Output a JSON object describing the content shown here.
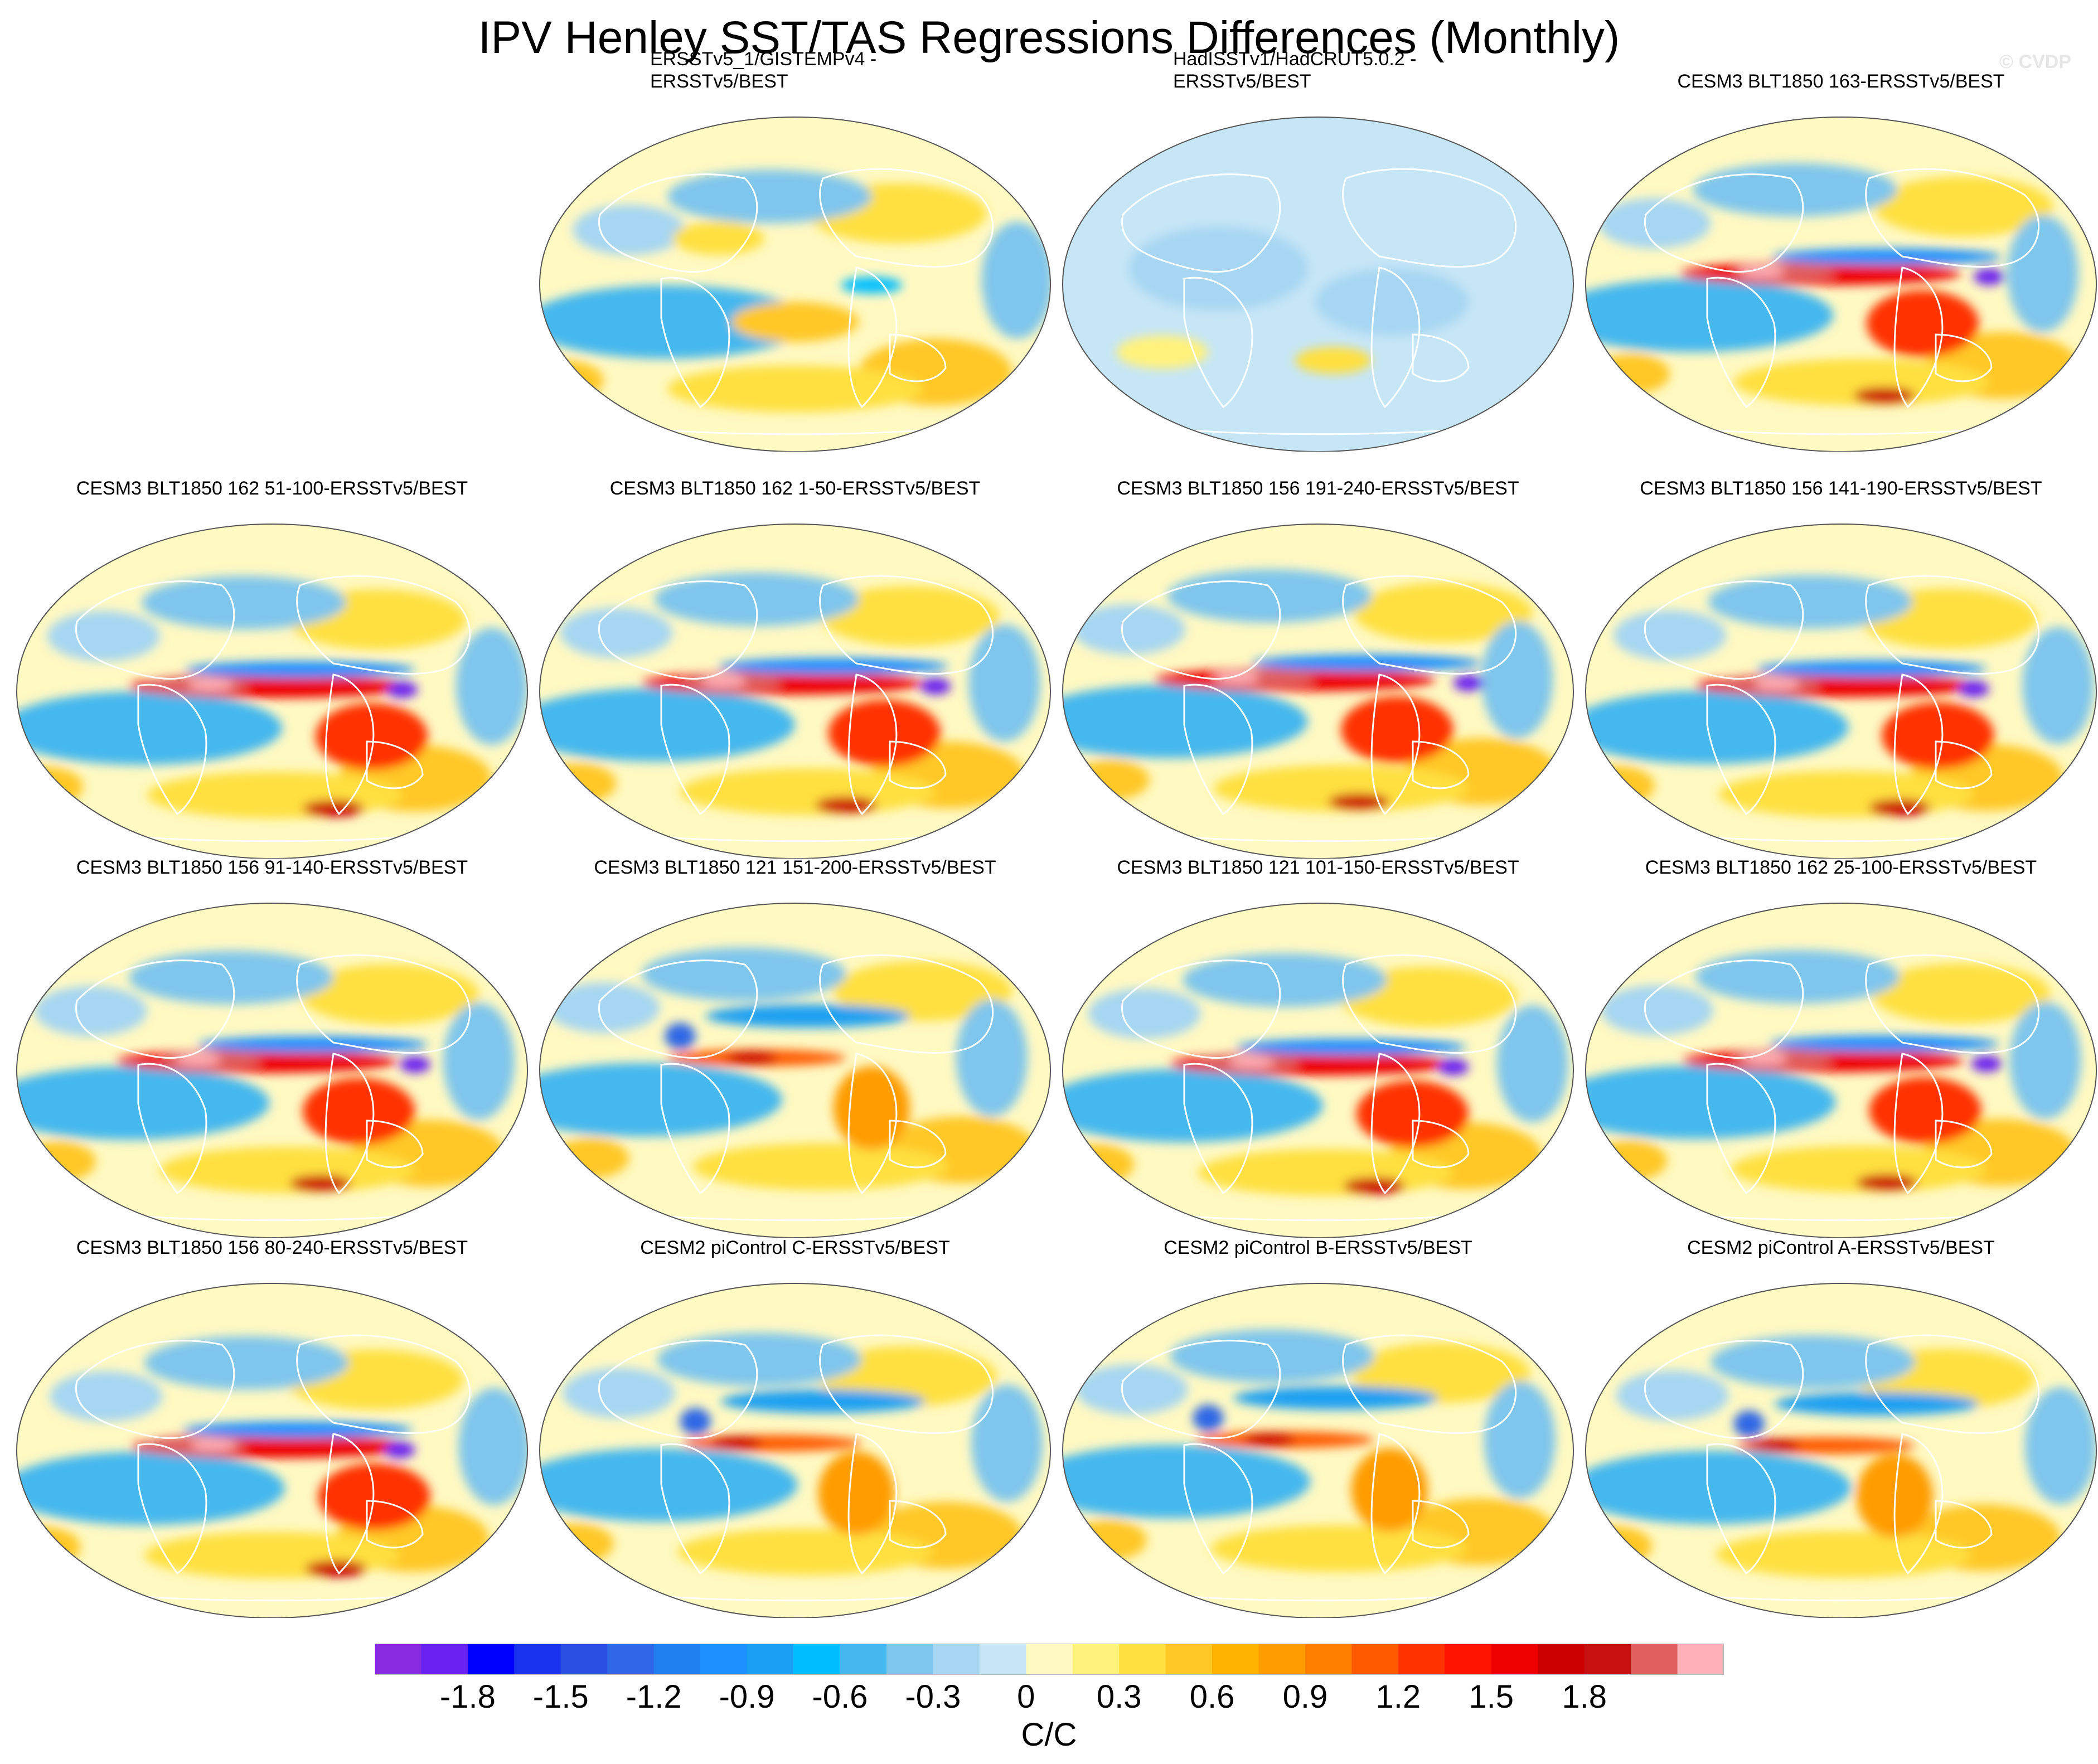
{
  "title": "IPV Henley SST/TAS Regressions Differences (Monthly)",
  "copyright": "© CVDP",
  "units": "C/C",
  "colorbar": {
    "colors": [
      "#8a2be2",
      "#6a22f0",
      "#0000ff",
      "#1a33ee",
      "#2b4fe0",
      "#2f67e6",
      "#1f7fee",
      "#1e90ff",
      "#1aa0f2",
      "#00bfff",
      "#44b8ee",
      "#7fc6ec",
      "#a6d6f2",
      "#c6e6f6",
      "#fff9c2",
      "#fff27a",
      "#ffe040",
      "#ffc827",
      "#ffb300",
      "#ff9c00",
      "#ff7f00",
      "#ff5a00",
      "#ff3300",
      "#ff1400",
      "#ee0000",
      "#cc0000",
      "#c81010",
      "#e06060",
      "#ffb0b8"
    ],
    "ticks": [
      "-1.8",
      "-1.5",
      "-1.2",
      "-0.9",
      "-0.6",
      "-0.3",
      "0",
      "0.3",
      "0.6",
      "0.9",
      "1.2",
      "1.5",
      "1.8"
    ]
  },
  "panels": [
    {
      "row": 0,
      "col": 1,
      "title_line1": "ERSSTv5_1/GISTEMPv4 -",
      "title_line2": "ERSSTv5/BEST",
      "pattern": "weak"
    },
    {
      "row": 0,
      "col": 2,
      "title_line1": "HadISSTv1/HadCRUT5.0.2 -",
      "title_line2": "ERSSTv5/BEST",
      "pattern": "faint"
    },
    {
      "row": 0,
      "col": 3,
      "title_line1": "CESM3 BLT1850 163-ERSSTv5/BEST",
      "title_line2": "",
      "pattern": "strong"
    },
    {
      "row": 1,
      "col": 0,
      "title_line1": "CESM3 BLT1850 162 51-100-ERSSTv5/BEST",
      "title_line2": "",
      "pattern": "strong"
    },
    {
      "row": 1,
      "col": 1,
      "title_line1": "CESM3 BLT1850 162 1-50-ERSSTv5/BEST",
      "title_line2": "",
      "pattern": "strong"
    },
    {
      "row": 1,
      "col": 2,
      "title_line1": "CESM3 BLT1850 156 191-240-ERSSTv5/BEST",
      "title_line2": "",
      "pattern": "strong"
    },
    {
      "row": 1,
      "col": 3,
      "title_line1": "CESM3 BLT1850 156 141-190-ERSSTv5/BEST",
      "title_line2": "",
      "pattern": "strong"
    },
    {
      "row": 2,
      "col": 0,
      "title_line1": "CESM3 BLT1850 156 91-140-ERSSTv5/BEST",
      "title_line2": "",
      "pattern": "strong"
    },
    {
      "row": 2,
      "col": 1,
      "title_line1": "CESM3 BLT1850 121 151-200-ERSSTv5/BEST",
      "title_line2": "",
      "pattern": "medium"
    },
    {
      "row": 2,
      "col": 2,
      "title_line1": "CESM3 BLT1850 121 101-150-ERSSTv5/BEST",
      "title_line2": "",
      "pattern": "strong"
    },
    {
      "row": 2,
      "col": 3,
      "title_line1": "CESM3 BLT1850 162 25-100-ERSSTv5/BEST",
      "title_line2": "",
      "pattern": "strong"
    },
    {
      "row": 3,
      "col": 0,
      "title_line1": "CESM3 BLT1850 156 80-240-ERSSTv5/BEST",
      "title_line2": "",
      "pattern": "strong"
    },
    {
      "row": 3,
      "col": 1,
      "title_line1": "CESM2 piControl C-ERSSTv5/BEST",
      "title_line2": "",
      "pattern": "medium"
    },
    {
      "row": 3,
      "col": 2,
      "title_line1": "CESM2 piControl B-ERSSTv5/BEST",
      "title_line2": "",
      "pattern": "medium"
    },
    {
      "row": 3,
      "col": 3,
      "title_line1": "CESM2 piControl A-ERSSTv5/BEST",
      "title_line2": "",
      "pattern": "medium"
    }
  ]
}
